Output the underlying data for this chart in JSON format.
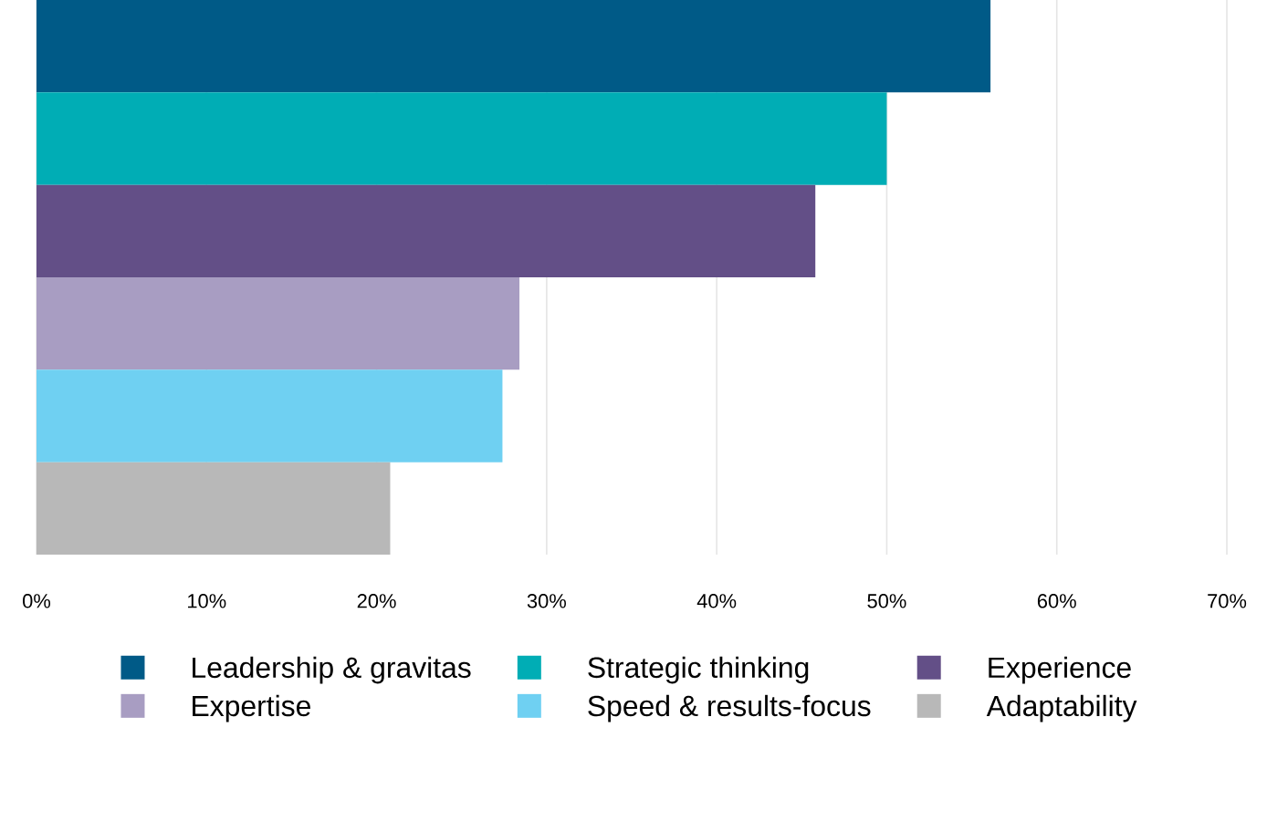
{
  "chart_data": {
    "type": "bar",
    "orientation": "horizontal",
    "categories": [
      null
    ],
    "series": [
      {
        "name": "Leadership & gravitas",
        "color": "#005a87",
        "values": [
          56.1
        ]
      },
      {
        "name": "Strategic thinking",
        "color": "#00adb5",
        "values": [
          50.0
        ]
      },
      {
        "name": "Experience",
        "color": "#634f87",
        "values": [
          45.8
        ]
      },
      {
        "name": "Expertise",
        "color": "#a89dc2",
        "values": [
          28.4
        ]
      },
      {
        "name": "Speed & results-focus",
        "color": "#6fd0f2",
        "values": [
          27.4
        ]
      },
      {
        "name": "Adaptability",
        "color": "#b8b8b8",
        "values": [
          20.8
        ]
      }
    ],
    "xlim": [
      0,
      70
    ],
    "xticks": [
      {
        "value": 0,
        "label": "0%"
      },
      {
        "value": 10,
        "label": "10%"
      },
      {
        "value": 20,
        "label": "20%"
      },
      {
        "value": 30,
        "label": "30%"
      },
      {
        "value": 40,
        "label": "40%"
      },
      {
        "value": 50,
        "label": "50%"
      },
      {
        "value": 60,
        "label": "60%"
      },
      {
        "value": 70,
        "label": "70%"
      }
    ],
    "grid": "x",
    "legend": "bottom",
    "tick_labels": "x"
  }
}
